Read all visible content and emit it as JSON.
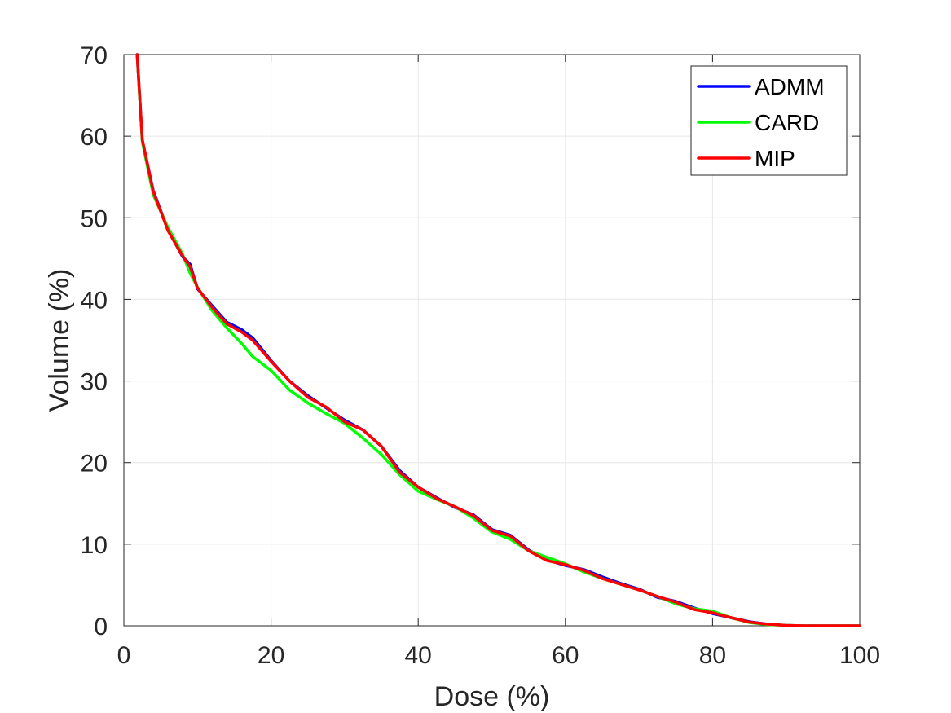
{
  "chart_data": {
    "type": "line",
    "title": "",
    "xlabel": "Dose (%)",
    "ylabel": "Volume (%)",
    "xlim": [
      0,
      100
    ],
    "ylim": [
      0,
      70
    ],
    "xticks": [
      0,
      20,
      40,
      60,
      80,
      100
    ],
    "yticks": [
      0,
      10,
      20,
      30,
      40,
      50,
      60,
      70
    ],
    "grid": true,
    "legend_position": "top-right",
    "series": [
      {
        "name": "ADMM",
        "color": "#0000ff",
        "x": [
          1.8,
          2.5,
          4,
          6,
          8,
          9,
          10,
          12,
          14,
          16,
          17.5,
          20,
          22.5,
          25,
          27.5,
          30,
          32.5,
          35,
          37.5,
          40,
          42.5,
          45,
          47.5,
          50,
          52.5,
          55,
          57.5,
          60,
          62.5,
          65,
          67.5,
          70,
          72.5,
          75,
          77.5,
          80,
          82.5,
          85,
          87.5,
          90,
          92.5,
          95,
          97.5,
          100
        ],
        "y": [
          70,
          59.5,
          53.3,
          48.5,
          45.2,
          44.3,
          41.3,
          39.2,
          37.2,
          36.3,
          35.3,
          32.5,
          30,
          28.2,
          26.7,
          25.2,
          24,
          22,
          19,
          17,
          15.7,
          14.5,
          13.6,
          11.8,
          11.1,
          9.3,
          8.1,
          7.4,
          6.9,
          6.0,
          5.2,
          4.5,
          3.5,
          3.0,
          2.2,
          1.5,
          1.0,
          0.5,
          0.2,
          0.05,
          0,
          0,
          0,
          0
        ]
      },
      {
        "name": "CARD",
        "color": "#00ff00",
        "x": [
          1.8,
          2.5,
          4,
          6,
          8,
          9,
          10,
          12,
          14,
          16,
          17.5,
          20,
          22.5,
          25,
          27.5,
          30,
          32.5,
          35,
          37.5,
          40,
          42.5,
          45,
          47.5,
          50,
          52.5,
          55,
          57.5,
          60,
          62.5,
          65,
          67.5,
          70,
          72.5,
          75,
          77.5,
          80,
          82.5,
          85,
          87.5,
          90,
          92.5,
          95,
          97.5,
          100
        ],
        "y": [
          70,
          59.3,
          52.8,
          48.8,
          45.5,
          43.2,
          41.5,
          38.6,
          36.5,
          34.6,
          33,
          31.3,
          28.9,
          27.3,
          26,
          24.8,
          23,
          21,
          18.5,
          16.5,
          15.5,
          14.6,
          13.2,
          11.5,
          10.6,
          9.2,
          8.4,
          7.6,
          6.6,
          5.8,
          5.1,
          4.4,
          3.6,
          2.7,
          2.1,
          1.8,
          1.0,
          0.4,
          0.15,
          0.05,
          0,
          0,
          0,
          0
        ]
      },
      {
        "name": "MIP",
        "color": "#ff0000",
        "x": [
          1.8,
          2.5,
          4,
          6,
          8,
          9,
          10,
          12,
          14,
          16,
          17.5,
          20,
          22.5,
          25,
          27.5,
          30,
          32.5,
          35,
          37.5,
          40,
          42.5,
          45,
          47.5,
          50,
          52.5,
          55,
          57.5,
          60,
          62.5,
          65,
          67.5,
          70,
          72.5,
          75,
          77.5,
          80,
          82.5,
          85,
          87.5,
          90,
          92.5,
          95,
          97.5,
          100
        ],
        "y": [
          70,
          59.6,
          53.2,
          48.4,
          45.3,
          44.0,
          41.4,
          39.0,
          37.0,
          36.0,
          35.0,
          32.4,
          30.0,
          28.0,
          26.8,
          25.0,
          24.0,
          22.0,
          18.8,
          17.0,
          15.6,
          14.6,
          13.5,
          11.7,
          11.0,
          9.2,
          8.0,
          7.5,
          6.8,
          5.8,
          5.1,
          4.4,
          3.6,
          2.9,
          2.0,
          1.6,
          1.0,
          0.45,
          0.2,
          0.05,
          0,
          0,
          0,
          0
        ]
      }
    ]
  }
}
